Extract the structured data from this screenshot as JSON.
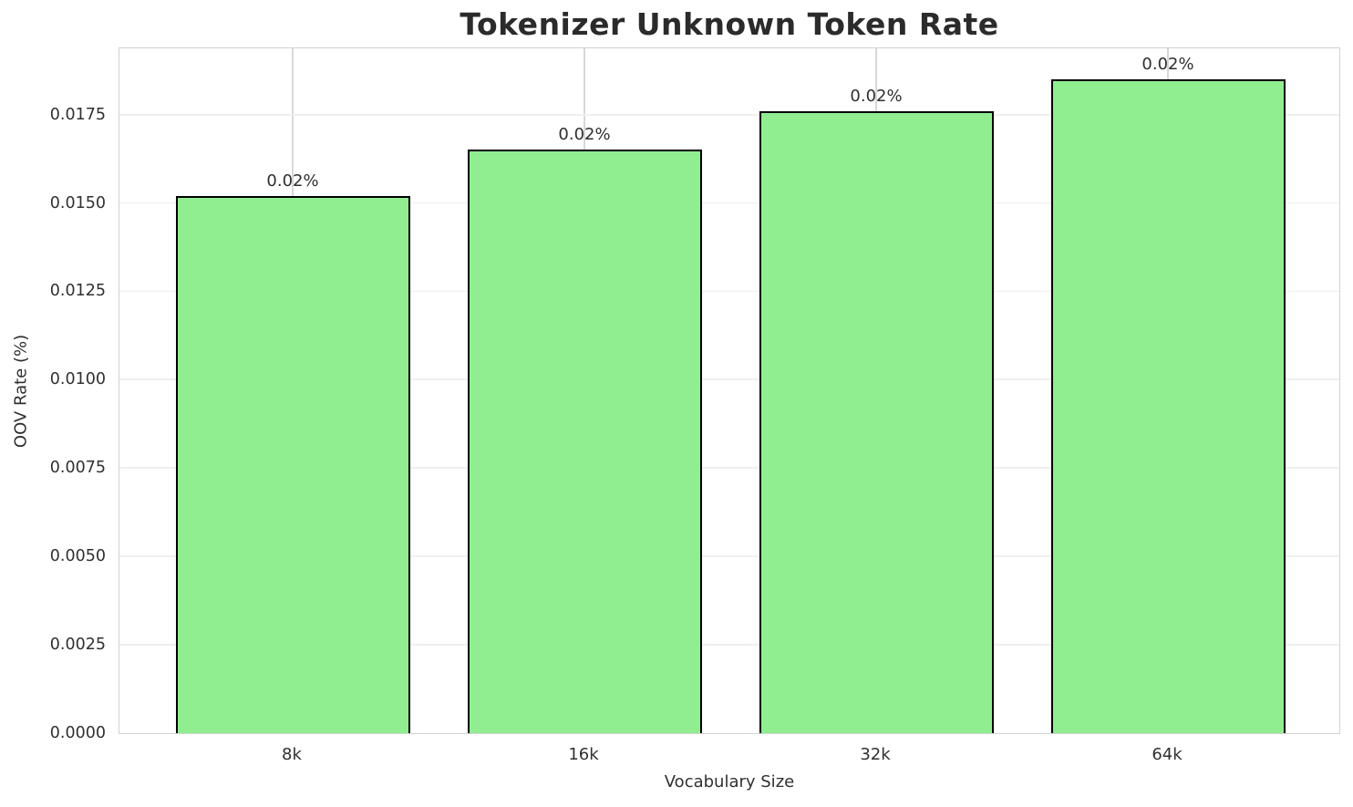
{
  "chart_data": {
    "type": "bar",
    "title": "Tokenizer Unknown Token Rate",
    "xlabel": "Vocabulary Size",
    "ylabel": "OOV Rate (%)",
    "categories": [
      "8k",
      "16k",
      "32k",
      "64k"
    ],
    "values": [
      0.0152,
      0.0165,
      0.0176,
      0.0185
    ],
    "bar_labels": [
      "0.02%",
      "0.02%",
      "0.02%",
      "0.02%"
    ],
    "yticks": {
      "values": [
        0.0,
        0.0025,
        0.005,
        0.0075,
        0.01,
        0.0125,
        0.015,
        0.0175
      ],
      "labels": [
        "0.0000",
        "0.0025",
        "0.0050",
        "0.0075",
        "0.0100",
        "0.0125",
        "0.0150",
        "0.0175"
      ]
    },
    "ylim": [
      0,
      0.019425
    ],
    "grid": true,
    "legend": "none",
    "colors": {
      "bar_fill": "#90ee90",
      "bar_edge": "#000000",
      "hgrid": "#efefef",
      "vgrid": "#d8d8d8",
      "frame": "#d2d2d2",
      "text": "#2b2b2b"
    }
  }
}
